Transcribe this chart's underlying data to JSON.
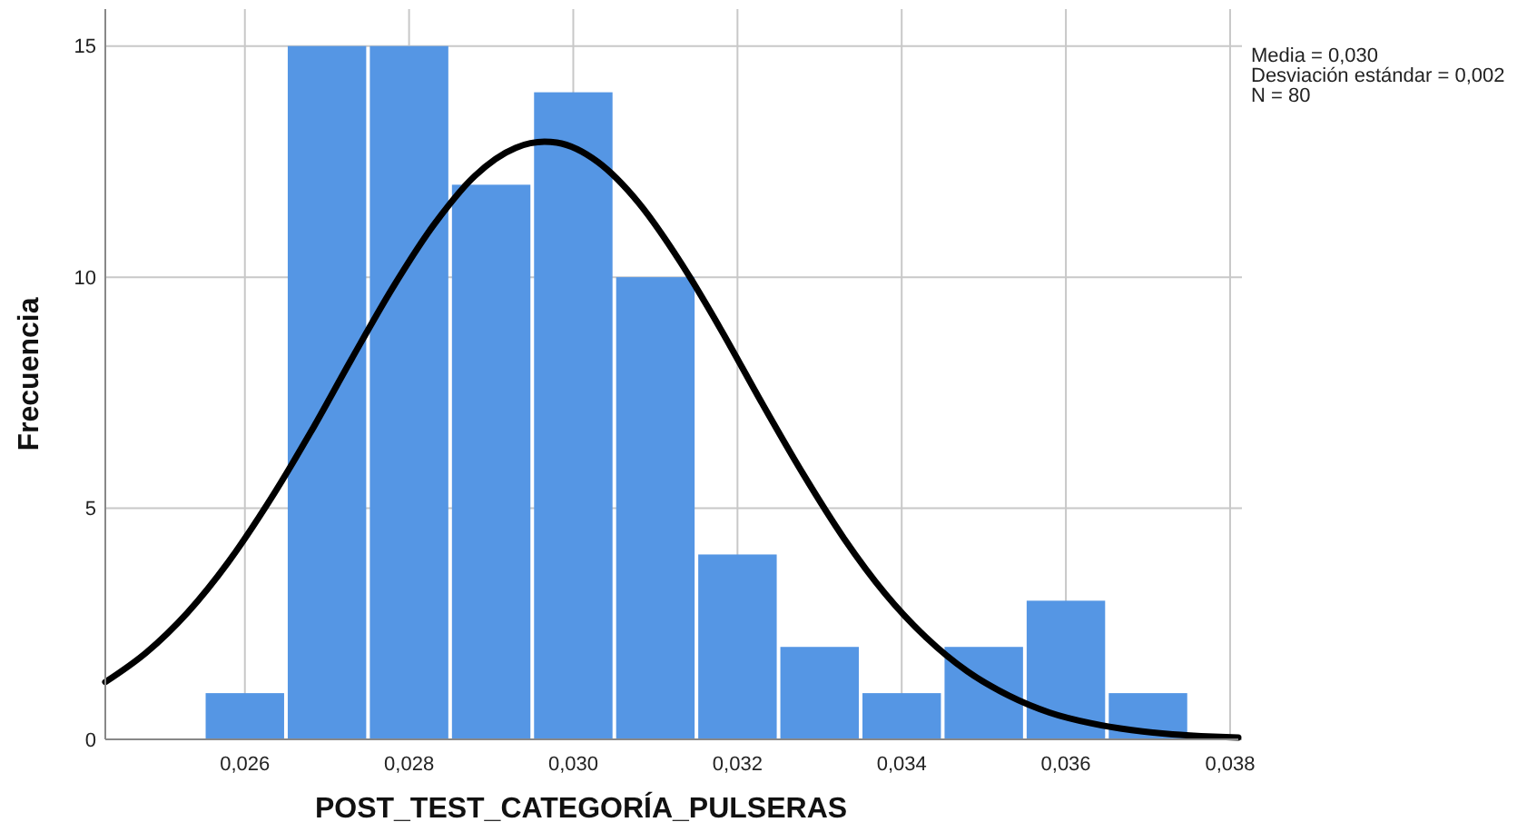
{
  "chart_data": {
    "type": "histogram",
    "xlabel": "POST_TEST_CATEGORÍA_PULSERAS",
    "ylabel": "Frecuencia",
    "bins": [
      0.0255,
      0.0265,
      0.0275,
      0.0285,
      0.0295,
      0.0305,
      0.0315,
      0.0325,
      0.0335,
      0.0345,
      0.0355,
      0.0365,
      0.0375
    ],
    "values": [
      1,
      15,
      15,
      12,
      14,
      10,
      4,
      2,
      1,
      2,
      3,
      1
    ],
    "color": "#5596e4",
    "series": [
      {
        "type": "line",
        "color": "#000000",
        "x": [
          0.0243,
          0.0248,
          0.0253,
          0.0258,
          0.0263,
          0.0268,
          0.0273,
          0.0278,
          0.0283,
          0.0288,
          0.0293,
          0.02965,
          0.0298,
          0.0303,
          0.0308,
          0.0313,
          0.0318,
          0.0323,
          0.0328,
          0.0333,
          0.0338,
          0.0343,
          0.0348,
          0.0353,
          0.0358,
          0.0363,
          0.0368,
          0.0373,
          0.0378,
          0.0381
        ],
        "values": [
          1.24,
          1.88,
          2.74,
          3.84,
          5.16,
          6.64,
          8.23,
          9.77,
          11.13,
          12.19,
          12.8,
          12.93,
          12.91,
          12.49,
          11.6,
          10.34,
          8.86,
          7.27,
          5.74,
          4.34,
          3.15,
          2.2,
          1.47,
          0.95,
          0.58,
          0.35,
          0.2,
          0.11,
          0.06,
          0.04
        ]
      }
    ],
    "xlim": [
      0.0243,
      0.0381
    ],
    "ylim": [
      0,
      15.8
    ],
    "xticks": [
      {
        "value": 0.026,
        "label": "0,026"
      },
      {
        "value": 0.028,
        "label": "0,028"
      },
      {
        "value": 0.03,
        "label": "0,030"
      },
      {
        "value": 0.032,
        "label": "0,032"
      },
      {
        "value": 0.034,
        "label": "0,034"
      },
      {
        "value": 0.036,
        "label": "0,036"
      },
      {
        "value": 0.038,
        "label": "0,038"
      }
    ],
    "yticks": [
      0,
      5,
      10,
      15
    ],
    "grid": true,
    "line_style": "solid",
    "annotations": [
      "Media = 0,030",
      "Desviación estándar = 0,002",
      "N = 80"
    ]
  }
}
